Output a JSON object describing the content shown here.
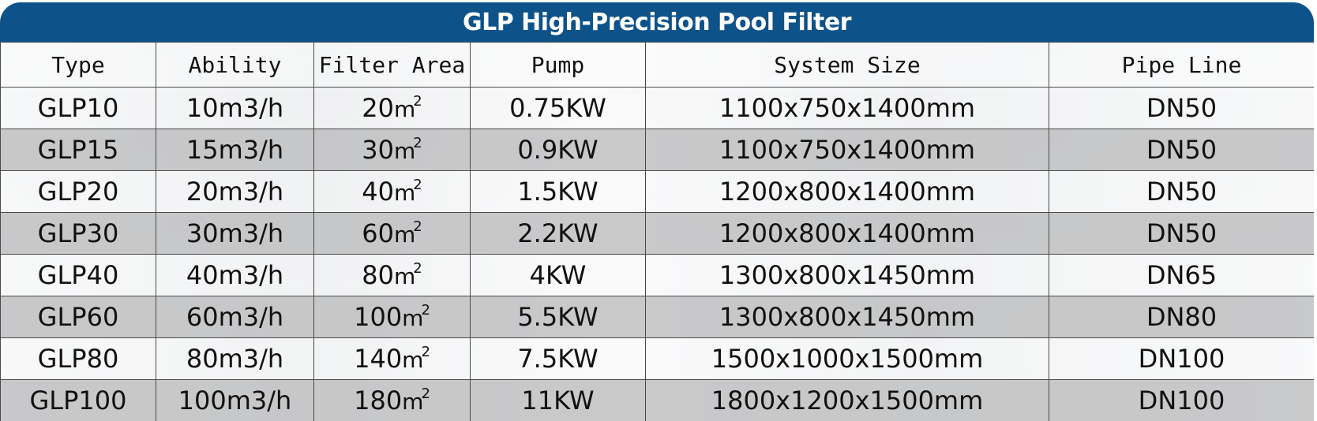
{
  "title": "GLP High-Precision Pool Filter",
  "colors": {
    "title_bar": "#0d5289",
    "title_text": "#ffffff",
    "row_shaded": "#bebec0",
    "grid_line": "#4a4a4a"
  },
  "columns": [
    "Type",
    "Ability",
    "Filter Area",
    "Pump",
    "System Size",
    "Pipe Line"
  ],
  "area_unit": "m",
  "area_exponent": "2",
  "rows": [
    {
      "type": "GLP10",
      "ability": "10m3/h",
      "area": "20",
      "pump": "0.75KW",
      "size": "1100x750x1400mm",
      "pipe": "DN50"
    },
    {
      "type": "GLP15",
      "ability": "15m3/h",
      "area": "30",
      "pump": "0.9KW",
      "size": "1100x750x1400mm",
      "pipe": "DN50"
    },
    {
      "type": "GLP20",
      "ability": "20m3/h",
      "area": "40",
      "pump": "1.5KW",
      "size": "1200x800x1400mm",
      "pipe": "DN50"
    },
    {
      "type": "GLP30",
      "ability": "30m3/h",
      "area": "60",
      "pump": "2.2KW",
      "size": "1200x800x1400mm",
      "pipe": "DN50"
    },
    {
      "type": "GLP40",
      "ability": "40m3/h",
      "area": "80",
      "pump": "4KW",
      "size": "1300x800x1450mm",
      "pipe": "DN65"
    },
    {
      "type": "GLP60",
      "ability": "60m3/h",
      "area": "100",
      "pump": "5.5KW",
      "size": "1300x800x1450mm",
      "pipe": "DN80"
    },
    {
      "type": "GLP80",
      "ability": "80m3/h",
      "area": "140",
      "pump": "7.5KW",
      "size": "1500x1000x1500mm",
      "pipe": "DN100"
    },
    {
      "type": "GLP100",
      "ability": "100m3/h",
      "area": "180",
      "pump": "11KW",
      "size": "1800x1200x1500mm",
      "pipe": "DN100"
    }
  ]
}
